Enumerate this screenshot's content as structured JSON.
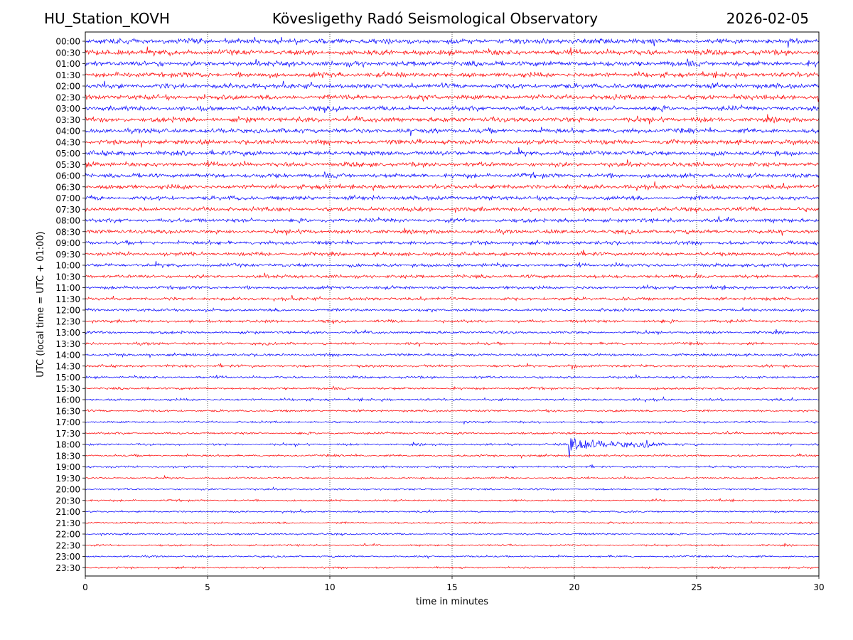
{
  "header": {
    "station": "HU_Station_KOVH",
    "observatory": "Kövesligethy Radó Seismological Observatory",
    "date": "2026-02-05"
  },
  "chart_data": {
    "type": "line",
    "xlabel": "time in minutes",
    "ylabel": "UTC (local time = UTC + 01:00)",
    "xlim": [
      0,
      30
    ],
    "xticks": [
      0,
      5,
      10,
      15,
      20,
      25,
      30
    ],
    "grid": "vertical dotted lines at each x tick",
    "colors": {
      "even_rows": "#0000ff",
      "odd_rows": "#ff0000"
    },
    "rows": [
      "00:00",
      "00:30",
      "01:00",
      "01:30",
      "02:00",
      "02:30",
      "03:00",
      "03:30",
      "04:00",
      "04:30",
      "05:00",
      "05:30",
      "06:00",
      "06:30",
      "07:00",
      "07:30",
      "08:00",
      "08:30",
      "09:00",
      "09:30",
      "10:00",
      "10:30",
      "11:00",
      "11:30",
      "12:00",
      "12:30",
      "13:00",
      "13:30",
      "14:00",
      "14:30",
      "15:00",
      "15:30",
      "16:00",
      "16:30",
      "17:00",
      "17:30",
      "18:00",
      "18:30",
      "19:00",
      "19:30",
      "20:00",
      "20:30",
      "21:00",
      "21:30",
      "22:00",
      "22:30",
      "23:00",
      "23:30"
    ],
    "noise_level_by_row": [
      1.0,
      1.0,
      1.0,
      0.95,
      0.95,
      0.95,
      0.9,
      0.9,
      0.9,
      0.9,
      0.9,
      0.85,
      0.85,
      0.85,
      0.8,
      0.8,
      0.75,
      0.75,
      0.7,
      0.7,
      0.65,
      0.65,
      0.6,
      0.6,
      0.55,
      0.55,
      0.5,
      0.5,
      0.5,
      0.5,
      0.45,
      0.45,
      0.45,
      0.4,
      0.4,
      0.4,
      0.4,
      0.4,
      0.4,
      0.35,
      0.35,
      0.35,
      0.35,
      0.35,
      0.35,
      0.35,
      0.35,
      0.35
    ],
    "events": [
      {
        "row": "14:30",
        "minute": 19.9,
        "amplitude": 2.0,
        "duration_min": 0.3
      },
      {
        "row": "18:00",
        "minute": 19.75,
        "amplitude": 4.0,
        "duration_min": 3.5
      },
      {
        "row": "18:00",
        "minute": 22.8,
        "amplitude": 1.4,
        "duration_min": 1.8
      }
    ]
  }
}
